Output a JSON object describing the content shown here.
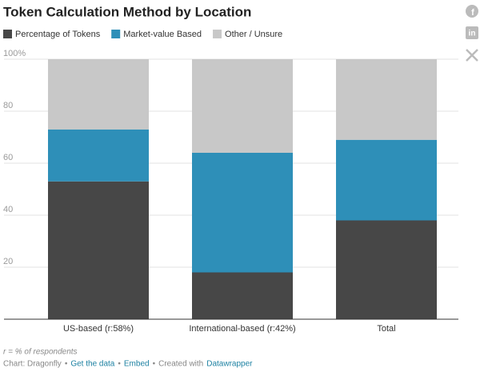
{
  "chart_data": {
    "type": "stacked_bar",
    "title": "Token Calculation Method by Location",
    "categories": [
      "US-based (r:58%)",
      "International-based (r:42%)",
      "Total"
    ],
    "series": [
      {
        "name": "Percentage of Tokens",
        "color": "#474747",
        "values": [
          53,
          18,
          38
        ]
      },
      {
        "name": "Market-value Based",
        "color": "#2e8fb8",
        "values": [
          20,
          46,
          31
        ]
      },
      {
        "name": "Other / Unsure",
        "color": "#c8c8c8",
        "values": [
          27,
          36,
          31
        ]
      }
    ],
    "ylim": [
      0,
      100
    ],
    "yticks": [
      {
        "value": 100,
        "label": "100%"
      },
      80,
      60,
      40,
      20
    ],
    "grid": true,
    "legend": "top"
  },
  "footer": {
    "note": "r = % of respondents",
    "separator": "•",
    "items": [
      "Chart: Dragonfly",
      "Get the data",
      "Embed",
      "Created with"
    ],
    "credit": "Datawrapper"
  }
}
